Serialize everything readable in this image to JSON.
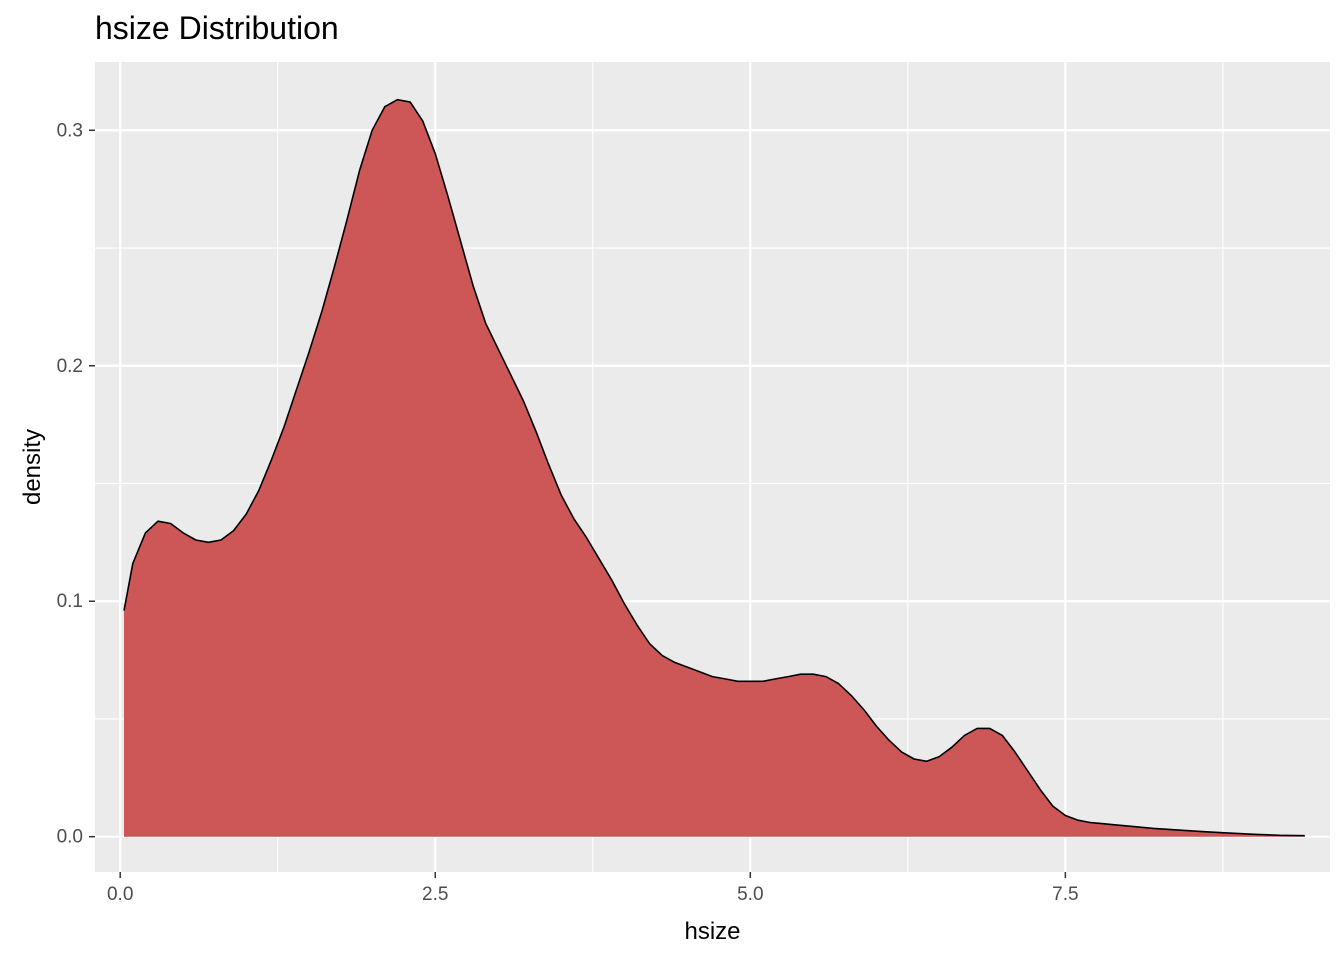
{
  "chart_data": {
    "type": "area",
    "title": "hsize Distribution",
    "xlabel": "hsize",
    "ylabel": "density",
    "xlim": [
      -0.2,
      9.6
    ],
    "ylim": [
      -0.015,
      0.329
    ],
    "x_ticks": [
      0.0,
      2.5,
      5.0,
      7.5
    ],
    "x_tick_labels": [
      "0.0",
      "2.5",
      "5.0",
      "7.5"
    ],
    "y_ticks": [
      0.0,
      0.1,
      0.2,
      0.3
    ],
    "y_tick_labels": [
      "0.0",
      "0.1",
      "0.2",
      "0.3"
    ],
    "grid": true,
    "fill_color": "#CD5757",
    "line_color": "#000000",
    "panel_color": "#EBEBEB",
    "series": [
      {
        "x": [
          0.03,
          0.1,
          0.2,
          0.3,
          0.4,
          0.5,
          0.6,
          0.7,
          0.8,
          0.9,
          1.0,
          1.1,
          1.2,
          1.3,
          1.4,
          1.5,
          1.6,
          1.7,
          1.8,
          1.9,
          2.0,
          2.1,
          2.2,
          2.3,
          2.4,
          2.5,
          2.6,
          2.7,
          2.8,
          2.9,
          3.0,
          3.1,
          3.2,
          3.3,
          3.4,
          3.5,
          3.6,
          3.7,
          3.8,
          3.9,
          4.0,
          4.1,
          4.2,
          4.3,
          4.4,
          4.5,
          4.6,
          4.7,
          4.8,
          4.9,
          5.0,
          5.1,
          5.2,
          5.3,
          5.4,
          5.5,
          5.6,
          5.7,
          5.8,
          5.9,
          6.0,
          6.1,
          6.2,
          6.3,
          6.4,
          6.5,
          6.6,
          6.7,
          6.8,
          6.9,
          7.0,
          7.1,
          7.2,
          7.3,
          7.4,
          7.5,
          7.6,
          7.7,
          7.8,
          7.9,
          8.0,
          8.2,
          8.4,
          8.6,
          8.8,
          9.0,
          9.2,
          9.4
        ],
        "y": [
          0.096,
          0.116,
          0.129,
          0.134,
          0.133,
          0.129,
          0.126,
          0.125,
          0.126,
          0.13,
          0.137,
          0.147,
          0.16,
          0.174,
          0.19,
          0.206,
          0.223,
          0.242,
          0.262,
          0.283,
          0.3,
          0.31,
          0.313,
          0.312,
          0.304,
          0.29,
          0.272,
          0.253,
          0.234,
          0.218,
          0.207,
          0.196,
          0.185,
          0.172,
          0.158,
          0.145,
          0.135,
          0.127,
          0.118,
          0.109,
          0.099,
          0.09,
          0.082,
          0.077,
          0.074,
          0.072,
          0.07,
          0.068,
          0.067,
          0.066,
          0.066,
          0.066,
          0.067,
          0.068,
          0.069,
          0.069,
          0.068,
          0.065,
          0.06,
          0.054,
          0.047,
          0.041,
          0.036,
          0.033,
          0.032,
          0.034,
          0.038,
          0.043,
          0.046,
          0.046,
          0.043,
          0.036,
          0.028,
          0.02,
          0.013,
          0.009,
          0.007,
          0.006,
          0.0055,
          0.005,
          0.0045,
          0.0035,
          0.0028,
          0.0021,
          0.0015,
          0.001,
          0.0006,
          0.0004
        ]
      }
    ]
  }
}
